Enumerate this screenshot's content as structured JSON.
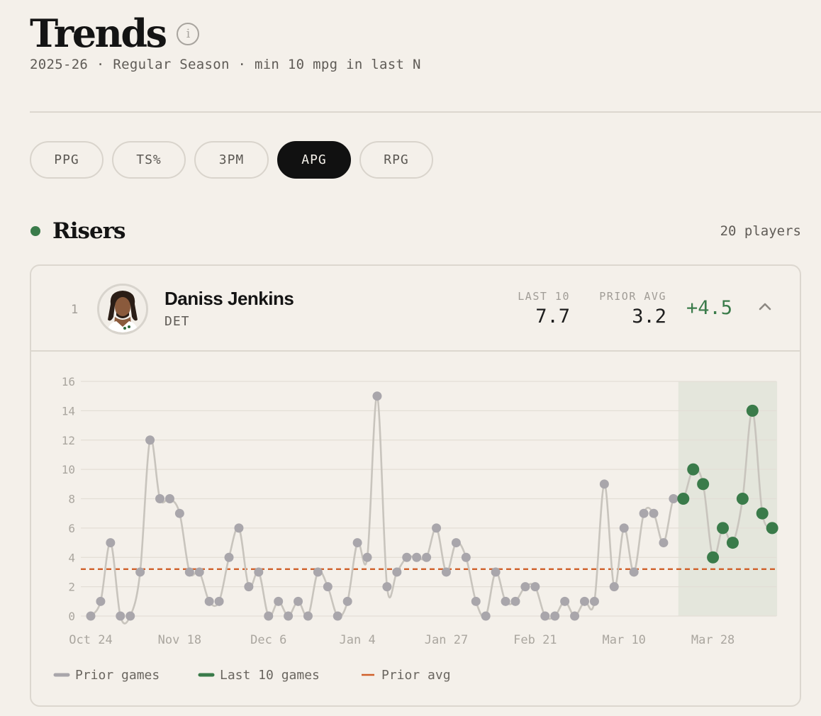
{
  "header": {
    "title": "Trends",
    "info_icon": "info-icon",
    "subtitle": "2025-26 · Regular Season · min 10 mpg in last N"
  },
  "tabs": [
    {
      "label": "PPG",
      "active": false
    },
    {
      "label": "TS%",
      "active": false
    },
    {
      "label": "3PM",
      "active": false
    },
    {
      "label": "APG",
      "active": true
    },
    {
      "label": "RPG",
      "active": false
    }
  ],
  "section": {
    "title": "Risers",
    "count": "20 players",
    "color": "#3a7b4a"
  },
  "player": {
    "rank": "1",
    "name": "Daniss Jenkins",
    "team": "DET",
    "last10_label": "LAST 10",
    "last10_value": "7.7",
    "prior_label": "PRIOR AVG",
    "prior_value": "3.2",
    "delta": "+4.5",
    "toggle_icon": "chevron-up-icon"
  },
  "colors": {
    "prior": "#a9a6ab",
    "last10": "#3a7b4a",
    "avg": "#d0602a",
    "line": "#c8c4bd"
  },
  "chart_data": {
    "type": "line",
    "ylim": [
      0,
      16
    ],
    "yticks": [
      0,
      2,
      4,
      6,
      8,
      10,
      12,
      14,
      16
    ],
    "xtick_labels": [
      "Oct 24",
      "Nov 18",
      "Dec 6",
      "Jan 4",
      "Jan 27",
      "Feb 21",
      "Mar 10",
      "Mar 28"
    ],
    "xtick_game_index": [
      0,
      9,
      18,
      27,
      36,
      45,
      54,
      63
    ],
    "prior_avg": 3.2,
    "series": [
      {
        "name": "Prior games",
        "values": [
          0,
          1,
          5,
          0,
          0,
          3,
          12,
          8,
          8,
          7,
          3,
          3,
          1,
          1,
          4,
          6,
          2,
          3,
          0,
          1,
          0,
          1,
          0,
          3,
          2,
          0,
          1,
          5,
          4,
          15,
          2,
          3,
          4,
          4,
          4,
          6,
          3,
          5,
          4,
          1,
          0,
          3,
          1,
          1,
          2,
          2,
          0,
          0,
          1,
          0,
          1,
          1,
          9,
          2,
          6,
          3,
          7,
          7,
          5,
          8
        ]
      },
      {
        "name": "Last 10 games",
        "values": [
          8,
          10,
          9,
          4,
          6,
          5,
          8,
          14,
          7,
          6
        ]
      },
      {
        "name": "Prior avg",
        "values": [
          3.2
        ]
      }
    ]
  }
}
